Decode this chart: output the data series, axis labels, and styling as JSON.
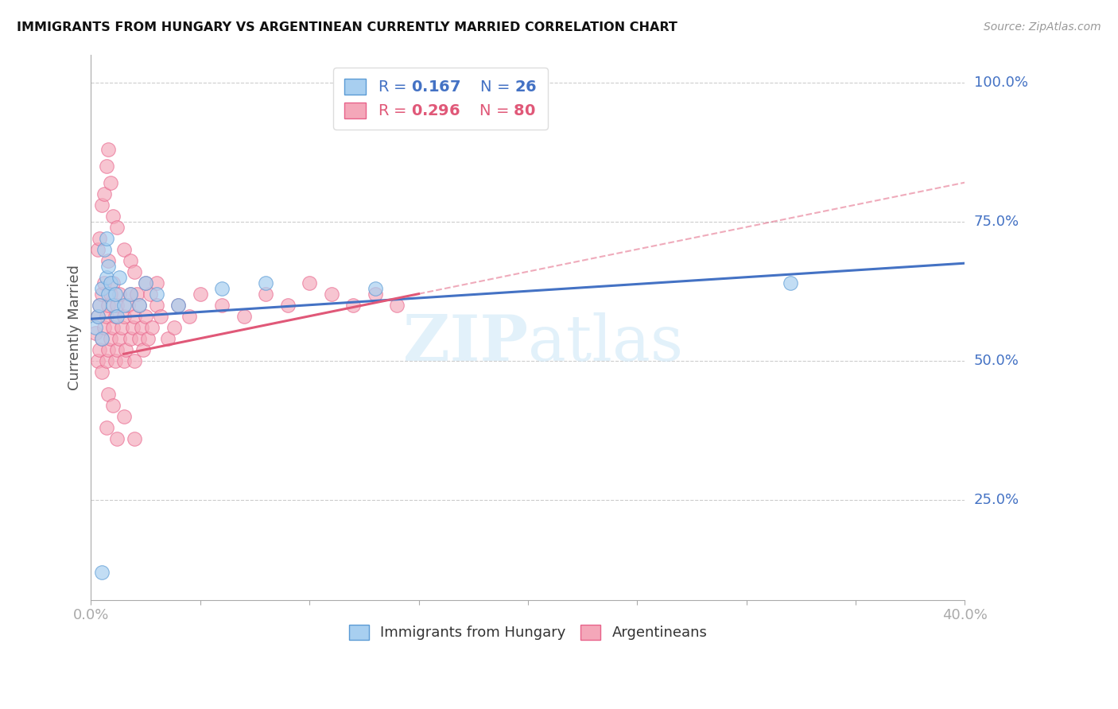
{
  "title": "IMMIGRANTS FROM HUNGARY VS ARGENTINEAN CURRENTLY MARRIED CORRELATION CHART",
  "source": "Source: ZipAtlas.com",
  "ylabel": "Currently Married",
  "xlim": [
    0.0,
    0.4
  ],
  "ylim": [
    0.07,
    1.05
  ],
  "ytick_values": [
    0.25,
    0.5,
    0.75,
    1.0
  ],
  "ytick_labels": [
    "25.0%",
    "50.0%",
    "75.0%",
    "100.0%"
  ],
  "xtick_left_label": "0.0%",
  "xtick_right_label": "40.0%",
  "legend1_R": "0.167",
  "legend1_N": "26",
  "legend2_R": "0.296",
  "legend2_N": "80",
  "blue_face": "#a8cff0",
  "blue_edge": "#5b9bd5",
  "pink_face": "#f4a7b9",
  "pink_edge": "#e8628a",
  "line_blue_color": "#4472c4",
  "line_pink_color": "#e05878",
  "line_dashed_color_blue": "#a0b8d8",
  "line_dashed_color_pink": "#f0a0b8",
  "watermark_color": "#d0e8f8",
  "watermark_alpha": 0.6,
  "blue_x": [
    0.002,
    0.003,
    0.004,
    0.005,
    0.005,
    0.006,
    0.007,
    0.007,
    0.008,
    0.008,
    0.009,
    0.01,
    0.011,
    0.012,
    0.013,
    0.015,
    0.018,
    0.022,
    0.025,
    0.03,
    0.04,
    0.06,
    0.08,
    0.13,
    0.32,
    0.005
  ],
  "blue_y": [
    0.56,
    0.58,
    0.6,
    0.54,
    0.63,
    0.7,
    0.65,
    0.72,
    0.62,
    0.67,
    0.64,
    0.6,
    0.62,
    0.58,
    0.65,
    0.6,
    0.62,
    0.6,
    0.64,
    0.62,
    0.6,
    0.63,
    0.64,
    0.63,
    0.64,
    0.12
  ],
  "pink_x": [
    0.002,
    0.003,
    0.003,
    0.004,
    0.004,
    0.005,
    0.005,
    0.005,
    0.006,
    0.006,
    0.007,
    0.007,
    0.008,
    0.008,
    0.008,
    0.009,
    0.009,
    0.01,
    0.01,
    0.011,
    0.011,
    0.012,
    0.012,
    0.013,
    0.013,
    0.014,
    0.015,
    0.015,
    0.016,
    0.017,
    0.018,
    0.018,
    0.019,
    0.02,
    0.02,
    0.021,
    0.022,
    0.022,
    0.023,
    0.024,
    0.025,
    0.026,
    0.027,
    0.028,
    0.03,
    0.032,
    0.035,
    0.038,
    0.04,
    0.045,
    0.05,
    0.06,
    0.07,
    0.08,
    0.09,
    0.1,
    0.11,
    0.12,
    0.13,
    0.14,
    0.003,
    0.004,
    0.005,
    0.006,
    0.007,
    0.008,
    0.009,
    0.01,
    0.012,
    0.015,
    0.018,
    0.02,
    0.025,
    0.03,
    0.008,
    0.01,
    0.015,
    0.007,
    0.012,
    0.02
  ],
  "pink_y": [
    0.55,
    0.58,
    0.5,
    0.52,
    0.6,
    0.54,
    0.62,
    0.48,
    0.56,
    0.64,
    0.5,
    0.58,
    0.52,
    0.6,
    0.68,
    0.54,
    0.62,
    0.56,
    0.64,
    0.5,
    0.58,
    0.52,
    0.6,
    0.54,
    0.62,
    0.56,
    0.5,
    0.58,
    0.52,
    0.6,
    0.54,
    0.62,
    0.56,
    0.5,
    0.58,
    0.62,
    0.54,
    0.6,
    0.56,
    0.52,
    0.58,
    0.54,
    0.62,
    0.56,
    0.6,
    0.58,
    0.54,
    0.56,
    0.6,
    0.58,
    0.62,
    0.6,
    0.58,
    0.62,
    0.6,
    0.64,
    0.62,
    0.6,
    0.62,
    0.6,
    0.7,
    0.72,
    0.78,
    0.8,
    0.85,
    0.88,
    0.82,
    0.76,
    0.74,
    0.7,
    0.68,
    0.66,
    0.64,
    0.64,
    0.44,
    0.42,
    0.4,
    0.38,
    0.36,
    0.36
  ]
}
